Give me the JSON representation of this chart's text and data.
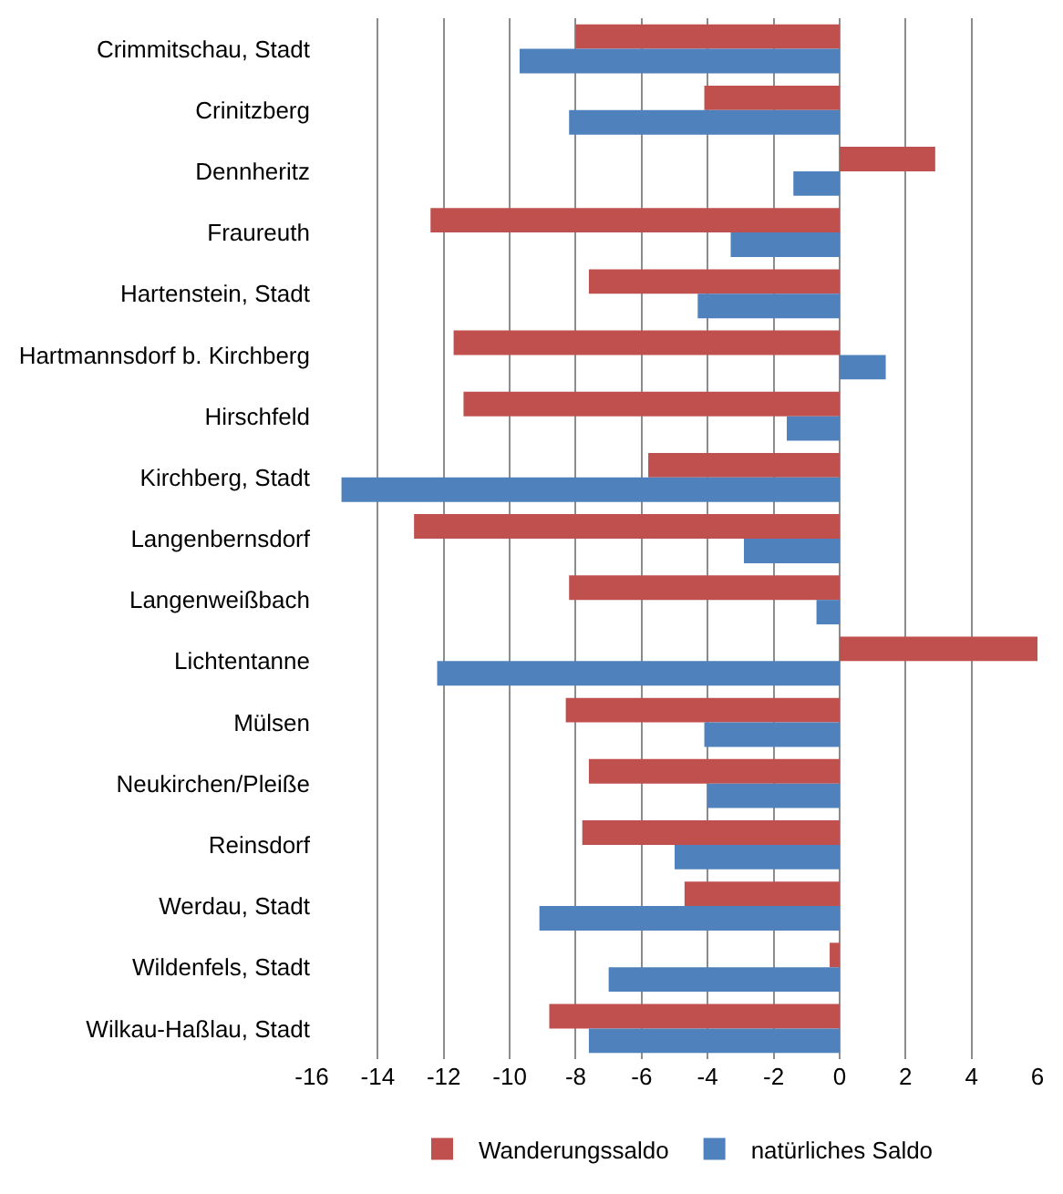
{
  "chart_data": {
    "type": "bar",
    "orientation": "horizontal",
    "categories": [
      "Crimmitschau, Stadt",
      "Crinitzberg",
      "Dennheritz",
      "Fraureuth",
      "Hartenstein, Stadt",
      "Hartmannsdorf b. Kirchberg",
      "Hirschfeld",
      "Kirchberg, Stadt",
      "Langenbernsdorf",
      "Langenweißbach",
      "Lichtentanne",
      "Mülsen",
      "Neukirchen/Pleiße",
      "Reinsdorf",
      "Werdau, Stadt",
      "Wildenfels, Stadt",
      "Wilkau-Haßlau, Stadt"
    ],
    "series": [
      {
        "name": "Wanderungssaldo",
        "color": "#c0504d",
        "values": [
          -8.0,
          -4.1,
          2.9,
          -12.4,
          -7.6,
          -11.7,
          -11.4,
          -5.8,
          -12.9,
          -8.2,
          6.0,
          -8.3,
          -7.6,
          -7.8,
          -4.7,
          -0.3,
          -8.8
        ]
      },
      {
        "name": "natürliches Saldo",
        "color": "#4f81bd",
        "values": [
          -9.7,
          -8.2,
          -1.4,
          -3.3,
          -4.3,
          1.4,
          -1.6,
          -15.1,
          -2.9,
          -0.7,
          -12.2,
          -4.1,
          -4.0,
          -5.0,
          -9.1,
          -7.0,
          -7.6
        ]
      }
    ],
    "xlim": [
      -16,
      6
    ],
    "xticks": [
      -16,
      -14,
      -12,
      -10,
      -8,
      -6,
      -4,
      -2,
      0,
      2,
      4,
      6
    ],
    "grid": "x",
    "legend": "bottom"
  }
}
